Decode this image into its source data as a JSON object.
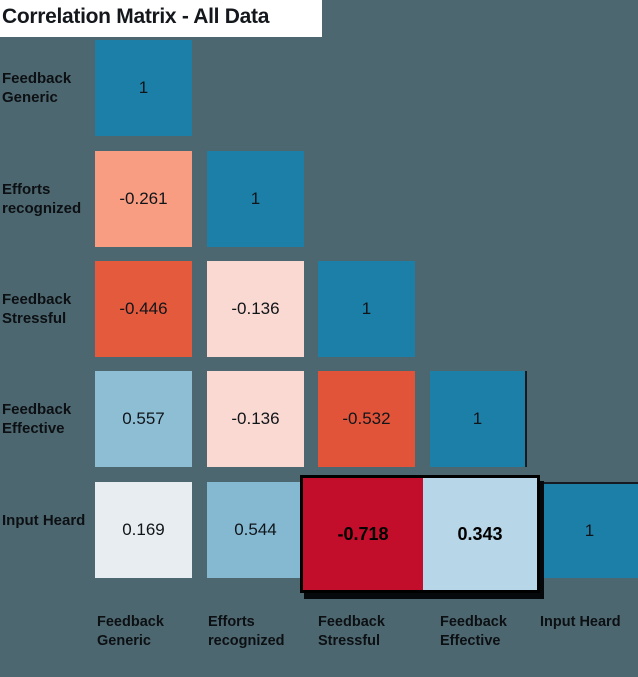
{
  "title": "Correlation Matrix - All Data",
  "colors": {
    "background": "#4d6770",
    "title_background": "#ffffff",
    "title_text": "#14181c",
    "label_text": "#0c1013",
    "cell_text": "#10151a",
    "diagonal_cell": "#1c7fa8",
    "highlight_border": "#000000"
  },
  "chart_data": {
    "type": "heatmap",
    "subtype": "correlation-matrix-lower-triangular",
    "title": "Correlation Matrix - All Data",
    "legend_position": "none",
    "grid": false,
    "rows": [
      "Feedback Generic",
      "Efforts recognized",
      "Feedback Stressful",
      "Feedback Effective",
      "Input Heard"
    ],
    "cols": [
      "Feedback Generic",
      "Efforts recognized",
      "Feedback Stressful",
      "Feedback Effective",
      "Input Heard"
    ],
    "value_range": [
      -1,
      1
    ],
    "matrix": [
      [
        1,
        null,
        null,
        null,
        null
      ],
      [
        -0.261,
        1,
        null,
        null,
        null
      ],
      [
        -0.446,
        -0.136,
        1,
        null,
        null
      ],
      [
        0.557,
        -0.136,
        -0.532,
        1,
        null
      ],
      [
        0.169,
        0.544,
        -0.718,
        0.343,
        1
      ]
    ],
    "highlighted_cells": [
      {
        "row": "Input Heard",
        "col": "Feedback Stressful",
        "value": "-0.718"
      },
      {
        "row": "Input Heard",
        "col": "Feedback Effective",
        "value": "0.343"
      }
    ],
    "cells": [
      {
        "row": 0,
        "col": 0,
        "value": "1",
        "color": "#1c7fa8",
        "highlighted": false
      },
      {
        "row": 1,
        "col": 0,
        "value": "-0.261",
        "color": "#f99d82",
        "highlighted": false
      },
      {
        "row": 1,
        "col": 1,
        "value": "1",
        "color": "#1c7fa8",
        "highlighted": false
      },
      {
        "row": 2,
        "col": 0,
        "value": "-0.446",
        "color": "#e45a3d",
        "highlighted": false
      },
      {
        "row": 2,
        "col": 1,
        "value": "-0.136",
        "color": "#f9d9d1",
        "highlighted": false
      },
      {
        "row": 2,
        "col": 2,
        "value": "1",
        "color": "#1c7fa8",
        "highlighted": false
      },
      {
        "row": 3,
        "col": 0,
        "value": "0.557",
        "color": "#8dbed4",
        "highlighted": false
      },
      {
        "row": 3,
        "col": 1,
        "value": "-0.136",
        "color": "#f9d9d1",
        "highlighted": false
      },
      {
        "row": 3,
        "col": 2,
        "value": "-0.532",
        "color": "#e2543a",
        "highlighted": false
      },
      {
        "row": 3,
        "col": 3,
        "value": "1",
        "color": "#1c7fa8",
        "highlighted": false
      },
      {
        "row": 4,
        "col": 0,
        "value": "0.169",
        "color": "#e7edf1",
        "highlighted": false
      },
      {
        "row": 4,
        "col": 1,
        "value": "0.544",
        "color": "#85b9d2",
        "highlighted": false
      },
      {
        "row": 4,
        "col": 2,
        "value": "-0.718",
        "color": "#c20e2b",
        "highlighted": true
      },
      {
        "row": 4,
        "col": 3,
        "value": "0.343",
        "color": "#b7d6e7",
        "highlighted": true
      },
      {
        "row": 4,
        "col": 4,
        "value": "1",
        "color": "#1c7fa8",
        "highlighted": false
      }
    ]
  }
}
